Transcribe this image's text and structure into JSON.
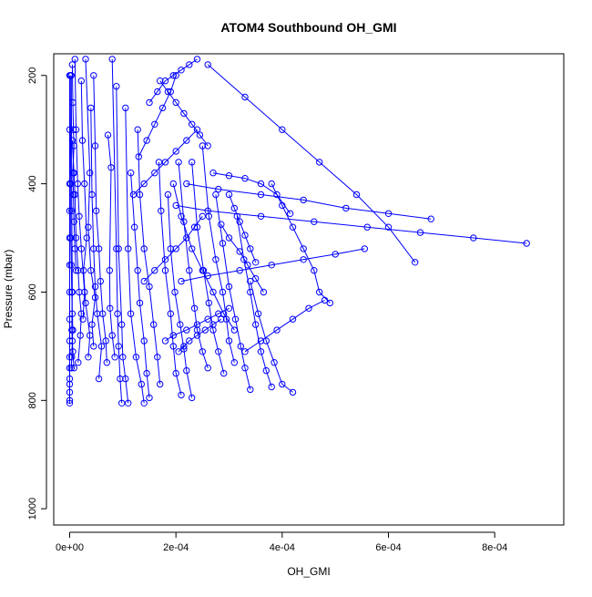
{
  "chart_data": {
    "type": "line",
    "title": "ATOM4 Southbound OH_GMI",
    "xlabel": "OH_GMI",
    "ylabel": "Pressure (mbar)",
    "x_ticks": [
      "0e+00",
      "2e-04",
      "4e-04",
      "6e-04",
      "8e-04"
    ],
    "y_ticks": [
      "200",
      "400",
      "600",
      "800",
      "1000"
    ],
    "xlim": [
      -3e-05,
      0.00093
    ],
    "ylim": [
      160,
      1030
    ],
    "y_reversed": true,
    "series_color": "#0000ff",
    "marker": "open-circle",
    "grid": false,
    "legend": "none",
    "series": [
      {
        "x": [
          0,
          0,
          0,
          0,
          0,
          0,
          0,
          0,
          0,
          0,
          0,
          0,
          0,
          0,
          0,
          0
        ],
        "y": [
          805,
          800,
          785,
          770,
          760,
          740,
          720,
          690,
          650,
          600,
          550,
          500,
          450,
          400,
          300,
          200
        ]
      },
      {
        "x": [
          3e-06,
          4e-06,
          5e-06,
          6e-06,
          5e-06,
          4e-06,
          3e-06,
          2e-06,
          2e-06,
          1e-06
        ],
        "y": [
          740,
          720,
          690,
          670,
          640,
          600,
          550,
          500,
          400,
          200
        ]
      },
      {
        "x": [
          8e-06,
          6e-06,
          4e-06,
          5e-06,
          4e-06,
          3e-06
        ],
        "y": [
          740,
          710,
          670,
          600,
          450,
          200
        ]
      },
      {
        "x": [
          1.2e-05,
          1e-05,
          8e-06,
          7e-06,
          6e-06,
          8e-06,
          7e-06,
          6e-06,
          5e-06
        ],
        "y": [
          560,
          520,
          470,
          420,
          380,
          330,
          300,
          250,
          180
        ]
      },
      {
        "x": [
          1.6e-05,
          2e-05,
          2.2e-05,
          1.8e-05,
          1.6e-05,
          1.2e-05,
          1e-05,
          8e-06,
          5e-06
        ],
        "y": [
          730,
          680,
          640,
          600,
          560,
          500,
          420,
          380,
          320
        ]
      },
      {
        "x": [
          2.5e-05,
          2.8e-05,
          2.2e-05,
          1.8e-05,
          1.5e-05,
          1.2e-05,
          1e-05
        ],
        "y": [
          650,
          600,
          520,
          460,
          400,
          300,
          170
        ]
      },
      {
        "x": [
          3.5e-05,
          3.8e-05,
          3e-05,
          2.6e-05,
          3.2e-05,
          2.8e-05,
          2.4e-05,
          2.2e-05
        ],
        "y": [
          720,
          680,
          620,
          560,
          500,
          400,
          320,
          210
        ]
      },
      {
        "x": [
          4.5e-05,
          4.2e-05,
          4.8e-05,
          4e-05,
          3.5e-05,
          3.8e-05,
          3e-05
        ],
        "y": [
          700,
          660,
          610,
          560,
          480,
          380,
          170
        ]
      },
      {
        "x": [
          5.5e-05,
          6e-05,
          5.2e-05,
          4.8e-05,
          4.5e-05,
          4.2e-05,
          4e-05
        ],
        "y": [
          760,
          700,
          640,
          590,
          520,
          420,
          260
        ]
      },
      {
        "x": [
          7e-05,
          6.8e-05,
          6.2e-05,
          5.8e-05,
          5.5e-05,
          5e-05,
          4.8e-05,
          4.5e-05
        ],
        "y": [
          730,
          690,
          640,
          580,
          520,
          450,
          330,
          200
        ]
      },
      {
        "x": [
          8.5e-05,
          8e-05,
          7.6e-05,
          7.5e-05,
          7.8e-05,
          7.2e-05
        ],
        "y": [
          720,
          680,
          630,
          560,
          370,
          310
        ]
      },
      {
        "x": [
          9.8e-05,
          9.5e-05,
          9.2e-05,
          9e-05,
          8.8e-05,
          8e-05
        ],
        "y": [
          805,
          760,
          700,
          640,
          520,
          170
        ]
      },
      {
        "x": [
          0.00011,
          0.000105,
          0.0001,
          9.8e-05,
          9.2e-05,
          8.8e-05
        ],
        "y": [
          805,
          760,
          720,
          660,
          520,
          220
        ]
      },
      {
        "x": [
          0.00014,
          0.000135,
          0.000125,
          0.000115,
          0.00011,
          0.000105
        ],
        "y": [
          805,
          770,
          720,
          640,
          520,
          260
        ]
      },
      {
        "x": [
          0.00015,
          0.000145,
          0.00014,
          0.000132,
          0.000128,
          0.000122,
          0.000115
        ],
        "y": [
          795,
          750,
          690,
          620,
          560,
          480,
          380
        ]
      },
      {
        "x": [
          0.00017,
          0.000165,
          0.000158,
          0.00015,
          0.00014,
          0.000132,
          0.000128
        ],
        "y": [
          770,
          720,
          660,
          590,
          520,
          420,
          300
        ]
      },
      {
        "x": [
          0.00021,
          0.0002,
          0.000195,
          0.00019,
          0.00018,
          0.000172,
          0.000168
        ],
        "y": [
          790,
          750,
          700,
          640,
          560,
          450,
          360
        ]
      },
      {
        "x": [
          0.00023,
          0.00022,
          0.000215,
          0.000208,
          0.000198,
          0.00019,
          0.000185
        ],
        "y": [
          795,
          745,
          705,
          660,
          600,
          520,
          420
        ]
      },
      {
        "x": [
          0.00026,
          0.00025,
          0.00024,
          0.000235,
          0.000225,
          0.000215,
          0.000205
        ],
        "y": [
          740,
          710,
          670,
          630,
          560,
          470,
          360
        ]
      },
      {
        "x": [
          0.00029,
          0.00028,
          0.00027,
          0.000262,
          0.000252,
          0.00024,
          0.00023
        ],
        "y": [
          750,
          710,
          670,
          620,
          560,
          480,
          360
        ]
      },
      {
        "x": [
          0.00031,
          0.0003,
          0.000295,
          0.000288,
          0.000275,
          0.000262,
          0.00025
        ],
        "y": [
          730,
          690,
          650,
          600,
          540,
          460,
          330
        ]
      },
      {
        "x": [
          0.00034,
          0.00033,
          0.000322,
          0.000312,
          0.0003,
          0.000288,
          0.000275
        ],
        "y": [
          780,
          740,
          700,
          650,
          590,
          510,
          420
        ]
      },
      {
        "x": [
          0.00038,
          0.00037,
          0.00036,
          0.00035,
          0.00034,
          0.000328,
          0.000315
        ],
        "y": [
          775,
          745,
          710,
          660,
          600,
          540,
          460
        ]
      },
      {
        "x": [
          0.00042,
          0.0004,
          0.000385,
          0.00037,
          0.000355,
          0.00034
        ],
        "y": [
          785,
          770,
          730,
          690,
          640,
          580
        ]
      },
      {
        "x": [
          0.00049,
          0.00047,
          0.00046,
          0.00044,
          0.00042,
          0.0004,
          0.00038
        ],
        "y": [
          620,
          600,
          560,
          520,
          480,
          440,
          400
        ]
      },
      {
        "x": [
          0.00048,
          0.00045,
          0.00042,
          0.00039,
          0.00036,
          0.00033
        ],
        "y": [
          615,
          630,
          650,
          670,
          690,
          710
        ]
      },
      {
        "x": [
          0.000415,
          0.00039,
          0.00036,
          0.00033,
          0.0003,
          0.00027
        ],
        "y": [
          455,
          420,
          400,
          390,
          385,
          380
        ]
      },
      {
        "x": [
          0.00068,
          0.0006,
          0.00052,
          0.00044,
          0.00036,
          0.00028,
          0.00022
        ],
        "y": [
          465,
          455,
          445,
          430,
          420,
          410,
          400
        ]
      },
      {
        "x": [
          0.00086,
          0.00076,
          0.00066,
          0.00056,
          0.00046,
          0.00036,
          0.00026,
          0.0002
        ],
        "y": [
          510,
          500,
          490,
          480,
          470,
          460,
          450,
          440
        ]
      },
      {
        "x": [
          0.000555,
          0.0005,
          0.00044,
          0.00038,
          0.00032,
          0.00026,
          0.00021
        ],
        "y": [
          520,
          530,
          540,
          550,
          560,
          570,
          580
        ]
      },
      {
        "x": [
          0.00065,
          0.0006,
          0.00054,
          0.00047,
          0.0004,
          0.00033,
          0.00026
        ],
        "y": [
          545,
          480,
          420,
          360,
          300,
          240,
          180
        ]
      },
      {
        "x": [
          0.00031,
          0.00029,
          0.00027,
          0.00025,
          0.00023,
          0.00021,
          0.000195
        ],
        "y": [
          670,
          640,
          600,
          560,
          520,
          460,
          400
        ]
      },
      {
        "x": [
          0.00018,
          0.000195,
          0.00022,
          0.00024,
          0.00026,
          0.00028,
          0.0003
        ],
        "y": [
          690,
          680,
          670,
          660,
          650,
          640,
          630
        ]
      },
      {
        "x": [
          0.00014,
          0.00016,
          0.00018,
          0.0002,
          0.00022,
          0.000235,
          0.00025
        ],
        "y": [
          580,
          560,
          540,
          520,
          500,
          480,
          460
        ]
      },
      {
        "x": [
          0.00012,
          0.00014,
          0.00016,
          0.00018,
          0.0002,
          0.00022,
          0.00024
        ],
        "y": [
          420,
          400,
          380,
          360,
          340,
          320,
          300
        ]
      },
      {
        "x": [
          0.00026,
          0.000245,
          0.00023,
          0.000215,
          0.0002,
          0.000185,
          0.00017
        ],
        "y": [
          330,
          310,
          290,
          270,
          250,
          230,
          210
        ]
      },
      {
        "x": [
          0.00015,
          0.000165,
          0.00018,
          0.000195,
          0.00021,
          0.000225,
          0.00024
        ],
        "y": [
          250,
          230,
          210,
          200,
          190,
          180,
          170
        ]
      },
      {
        "x": [
          0.00013,
          0.000145,
          0.00016,
          0.000175,
          0.00019,
          0.0002
        ],
        "y": [
          350,
          320,
          290,
          260,
          230,
          200
        ]
      },
      {
        "x": [
          0.00035,
          0.00034,
          0.00033,
          0.00032,
          0.00031,
          0.0003
        ],
        "y": [
          545,
          520,
          495,
          470,
          445,
          420
        ]
      },
      {
        "x": [
          0.000365,
          0.00035,
          0.000335,
          0.00032,
          0.0003,
          0.000285
        ],
        "y": [
          600,
          575,
          550,
          525,
          500,
          475
        ]
      },
      {
        "x": [
          0.000205,
          0.000215,
          0.000225,
          0.00024,
          0.000255,
          0.00027,
          0.000285
        ],
        "y": [
          710,
          700,
          690,
          680,
          670,
          660,
          650
        ]
      }
    ]
  }
}
